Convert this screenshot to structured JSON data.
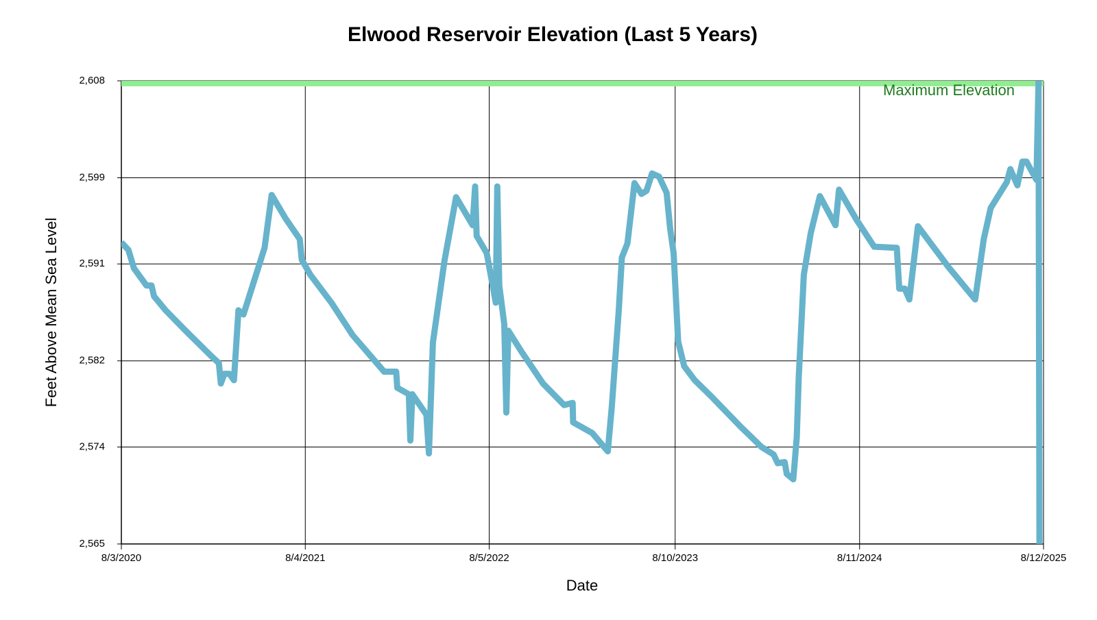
{
  "chart_data": {
    "type": "line",
    "title": "Elwood Reservoir Elevation (Last 5 Years)",
    "x_label": "Date",
    "y_label": "Feet Above Mean Sea Level",
    "grid": true,
    "xlim": [
      "2020-08-03",
      "2025-08-12"
    ],
    "xticks": [
      {
        "value": "2020-08-03",
        "label": "8/3/2020"
      },
      {
        "value": "2021-08-04",
        "label": "8/4/2021"
      },
      {
        "value": "2022-08-05",
        "label": "8/5/2022"
      },
      {
        "value": "2023-08-10",
        "label": "8/10/2023"
      },
      {
        "value": "2024-08-11",
        "label": "8/11/2024"
      },
      {
        "value": "2025-08-12",
        "label": "8/12/2025"
      }
    ],
    "ylim": [
      2565,
      2608
    ],
    "yticks": [
      {
        "value": 2565,
        "label": "2,565"
      },
      {
        "value": 2574,
        "label": "2,574"
      },
      {
        "value": 2582,
        "label": "2,582"
      },
      {
        "value": 2591,
        "label": "2,591"
      },
      {
        "value": 2599,
        "label": "2,599"
      },
      {
        "value": 2608,
        "label": "2,608"
      }
    ],
    "reference_line": {
      "value": 2608,
      "label": "Maximum Elevation",
      "color": "#90ee90",
      "label_color": "#1e7b1e"
    },
    "x": [
      "2020-08-03",
      "2020-08-17",
      "2020-08-28",
      "2020-09-22",
      "2020-10-02",
      "2020-10-07",
      "2020-10-30",
      "2020-12-11",
      "2021-01-30",
      "2021-02-13",
      "2021-02-17",
      "2021-02-24",
      "2021-03-06",
      "2021-03-15",
      "2021-03-24",
      "2021-04-03",
      "2021-05-15",
      "2021-05-29",
      "2021-06-26",
      "2021-07-24",
      "2021-07-28",
      "2021-08-14",
      "2021-09-25",
      "2021-11-06",
      "2022-01-08",
      "2022-02-01",
      "2022-02-03",
      "2022-02-26",
      "2022-03-01",
      "2022-03-05",
      "2022-04-02",
      "2022-04-07",
      "2022-04-15",
      "2022-05-08",
      "2022-05-31",
      "2022-07-03",
      "2022-07-08",
      "2022-07-11",
      "2022-07-31",
      "2022-08-18",
      "2022-08-21",
      "2022-08-25",
      "2022-09-04",
      "2022-09-08",
      "2022-09-12",
      "2022-10-09",
      "2022-11-20",
      "2023-01-01",
      "2023-01-18",
      "2023-01-19",
      "2023-02-26",
      "2023-03-29",
      "2023-04-06",
      "2023-04-20",
      "2023-04-26",
      "2023-05-07",
      "2023-05-21",
      "2023-06-04",
      "2023-06-14",
      "2023-06-25",
      "2023-07-09",
      "2023-07-24",
      "2023-07-31",
      "2023-08-07",
      "2023-08-16",
      "2023-08-28",
      "2023-09-18",
      "2023-10-23",
      "2023-12-18",
      "2024-01-29",
      "2024-02-22",
      "2024-03-01",
      "2024-03-15",
      "2024-03-19",
      "2024-04-01",
      "2024-04-08",
      "2024-04-12",
      "2024-04-22",
      "2024-05-06",
      "2024-05-24",
      "2024-06-24",
      "2024-07-01",
      "2024-08-05",
      "2024-09-09",
      "2024-10-24",
      "2024-10-29",
      "2024-11-09",
      "2024-11-18",
      "2024-12-05",
      "2025-02-04",
      "2025-03-29",
      "2025-04-15",
      "2025-04-29",
      "2025-05-31",
      "2025-06-07",
      "2025-06-21",
      "2025-07-01",
      "2025-07-09",
      "2025-07-29",
      "2025-08-02",
      "2025-08-04"
    ],
    "series": [
      {
        "name": "Elevation",
        "color": "#67b3cc",
        "values": [
          2593.0,
          2592.3,
          2590.6,
          2589.0,
          2589.0,
          2588.0,
          2586.7,
          2584.7,
          2582.4,
          2581.8,
          2579.9,
          2580.8,
          2580.8,
          2580.2,
          2586.7,
          2586.3,
          2592.5,
          2597.4,
          2595.2,
          2593.3,
          2591.4,
          2590.0,
          2587.4,
          2584.4,
          2581.0,
          2581.0,
          2579.5,
          2578.9,
          2574.6,
          2578.9,
          2577.0,
          2573.4,
          2583.7,
          2591.3,
          2597.2,
          2594.6,
          2598.2,
          2593.6,
          2592.0,
          2587.4,
          2598.2,
          2589.0,
          2585.4,
          2577.2,
          2584.8,
          2582.8,
          2579.9,
          2577.9,
          2578.1,
          2576.3,
          2575.3,
          2573.6,
          2577.8,
          2586.8,
          2591.6,
          2592.9,
          2598.5,
          2597.5,
          2597.8,
          2599.4,
          2599.1,
          2597.6,
          2594.3,
          2592.0,
          2583.8,
          2581.5,
          2580.2,
          2578.6,
          2575.9,
          2574.0,
          2573.3,
          2572.5,
          2572.6,
          2571.5,
          2571.0,
          2574.9,
          2580.5,
          2590.0,
          2593.9,
          2597.3,
          2594.6,
          2597.9,
          2595.1,
          2592.6,
          2592.5,
          2588.7,
          2588.7,
          2587.7,
          2594.5,
          2590.7,
          2587.7,
          2593.3,
          2596.2,
          2598.6,
          2599.8,
          2598.3,
          2600.5,
          2600.5,
          2598.8,
          2608,
          2565
        ]
      }
    ]
  }
}
